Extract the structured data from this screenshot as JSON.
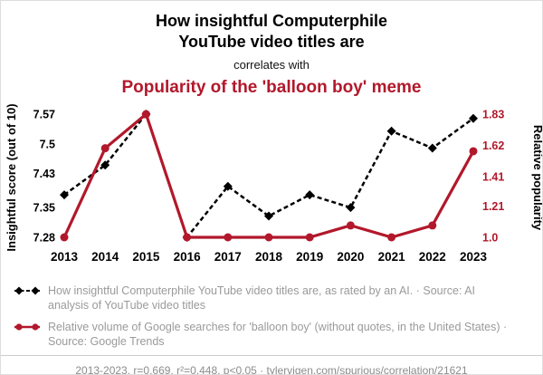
{
  "header": {
    "title_line1": "How insightful Computerphile",
    "title_line2": "YouTube video titles are",
    "connector": "correlates with",
    "title2": "Popularity of the 'balloon boy' meme"
  },
  "colors": {
    "accent": "#b2182b",
    "series_black": "#000000",
    "legend_gray": "#9a9a9a",
    "footer_gray": "#8c8c8c"
  },
  "chart_data": {
    "type": "line",
    "categories": [
      "2013",
      "2014",
      "2015",
      "2016",
      "2017",
      "2018",
      "2019",
      "2020",
      "2021",
      "2022",
      "2023"
    ],
    "series": [
      {
        "name": "insightful-score",
        "axis": "left",
        "color": "#000000",
        "style": "dashed-diamond",
        "values": [
          7.38,
          7.45,
          7.57,
          7.28,
          7.4,
          7.33,
          7.38,
          7.35,
          7.53,
          7.49,
          7.56
        ]
      },
      {
        "name": "balloon-boy-popularity",
        "axis": "right",
        "color": "#b2182b",
        "style": "solid-circle",
        "values": [
          1.0,
          1.6,
          1.83,
          1.0,
          1.0,
          1.0,
          1.0,
          1.08,
          1.0,
          1.08,
          1.58
        ]
      }
    ],
    "left_axis": {
      "label": "Insightful score (out of 10)",
      "ticks": [
        "7.28",
        "7.35",
        "7.43",
        "7.5",
        "7.57"
      ],
      "range": [
        7.28,
        7.57
      ]
    },
    "right_axis": {
      "label": "Relative popularity",
      "ticks": [
        "1.0",
        "1.21",
        "1.41",
        "1.62",
        "1.83"
      ],
      "range": [
        1.0,
        1.83
      ]
    },
    "grid": false,
    "legend_position": "bottom"
  },
  "legend": {
    "items": [
      {
        "label": "How insightful Computerphile YouTube video titles are, as rated by an AI. · Source: AI analysis of YouTube video titles"
      },
      {
        "label": "Relative volume of Google searches for 'balloon boy' (without quotes, in the United States) · Source: Google Trends"
      }
    ]
  },
  "footer": {
    "stats": "2013-2023, r=0.669, r²=0.448, p<0.05",
    "separator": " · ",
    "link": "tylervigen.com/spurious/correlation/21621"
  }
}
